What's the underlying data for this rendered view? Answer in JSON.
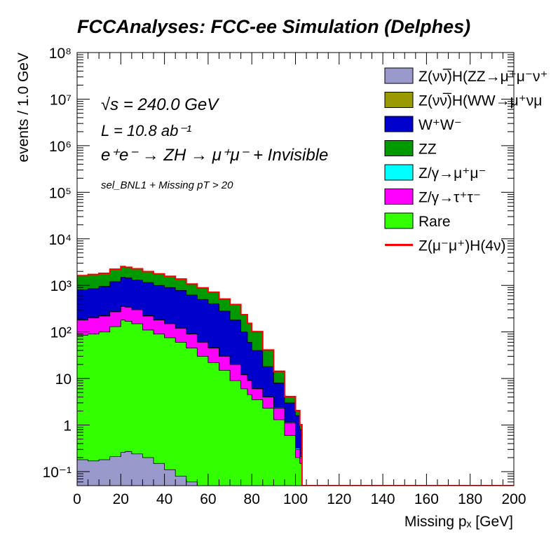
{
  "title": "FCCAnalyses: FCC-ee Simulation (Delphes)",
  "annotations": {
    "sqrt_s": "√s = 240.0 GeV",
    "lumi": "L = 10.8 ab⁻¹",
    "process": "e⁺e⁻ → ZH → μ⁺μ⁻ + Invisible",
    "selection": "sel_BNL1 + Missing pT > 20"
  },
  "colors": {
    "ZvvH_ZZ": "#9999cc",
    "ZvvH_WW": "#999900",
    "WW": "#0000cc",
    "ZZ": "#009900",
    "Zmumu": "#00ffff",
    "Ztautau": "#ff00ff",
    "Rare": "#33ff00",
    "signal": "#ff0000"
  },
  "chart_data": {
    "type": "area",
    "stacked": true,
    "x_scale": "linear",
    "y_scale": "log",
    "xlabel": "Missing pₓ [GeV]",
    "ylabel": "events / 1.0 GeV",
    "xlim": [
      0,
      200
    ],
    "ylim": [
      0.05,
      100000000
    ],
    "x_ticks": [
      0,
      20,
      40,
      60,
      80,
      100,
      120,
      140,
      160,
      180,
      200
    ],
    "y_ticks": [
      {
        "value": 0.1,
        "label": "10⁻¹"
      },
      {
        "value": 1,
        "label": "1"
      },
      {
        "value": 10,
        "label": "10"
      },
      {
        "value": 100,
        "label": "10²"
      },
      {
        "value": 1000,
        "label": "10³"
      },
      {
        "value": 10000,
        "label": "10⁴"
      },
      {
        "value": 100000,
        "label": "10⁵"
      },
      {
        "value": 1000000,
        "label": "10⁶"
      },
      {
        "value": 10000000,
        "label": "10⁷"
      },
      {
        "value": 100000000,
        "label": "10⁸"
      }
    ],
    "legend_position": "top-right",
    "legend": [
      {
        "key": "ZvvH_ZZ",
        "label": "Z(νν̅)H(ZZ→μ⁺μ⁻ν⁺",
        "style": "fill"
      },
      {
        "key": "ZvvH_WW",
        "label": "Z(νν̅)H(WW→μ⁺νμ",
        "style": "fill"
      },
      {
        "key": "WW",
        "label": "W⁺W⁻",
        "style": "fill"
      },
      {
        "key": "ZZ",
        "label": "ZZ",
        "style": "fill"
      },
      {
        "key": "Zmumu",
        "label": "Z/γ→μ⁺μ⁻",
        "style": "fill"
      },
      {
        "key": "Ztautau",
        "label": "Z/γ→τ⁺τ⁻",
        "style": "fill"
      },
      {
        "key": "Rare",
        "label": "Rare",
        "style": "fill"
      },
      {
        "key": "signal",
        "label": "Z(μ⁻μ⁺)H(4ν)",
        "style": "line"
      }
    ],
    "x": [
      0,
      5,
      10,
      15,
      20,
      22,
      25,
      30,
      35,
      40,
      45,
      50,
      55,
      60,
      65,
      70,
      75,
      78,
      80,
      85,
      90,
      95,
      100,
      102,
      103
    ],
    "boundaries": [
      {
        "name": "ZvvH_ZZ top",
        "values": [
          0.18,
          0.17,
          0.18,
          0.21,
          0.26,
          0.27,
          0.24,
          0.2,
          0.15,
          0.11,
          0.08,
          0.06,
          0.05,
          0.05,
          0.05,
          0.05,
          0.05,
          0.05,
          0.05,
          0.05,
          0.05,
          0.05,
          0.05,
          0.05,
          0.05
        ]
      },
      {
        "name": "Rare top",
        "values": [
          85,
          90,
          100,
          130,
          180,
          170,
          150,
          110,
          90,
          75,
          60,
          45,
          30,
          22,
          15,
          9,
          6,
          4.5,
          3.5,
          2.3,
          1.3,
          0.6,
          0.2,
          0.15,
          0.05
        ]
      },
      {
        "name": "Ztautau top",
        "values": [
          180,
          200,
          220,
          270,
          350,
          340,
          300,
          220,
          180,
          150,
          120,
          90,
          60,
          45,
          30,
          20,
          12,
          9,
          6,
          4,
          2.3,
          1.1,
          0.3,
          0.2,
          0.05
        ]
      },
      {
        "name": "Zmumu top",
        "values": [
          185,
          205,
          225,
          275,
          355,
          345,
          305,
          225,
          185,
          152,
          122,
          92,
          62,
          46,
          31,
          20.5,
          12.3,
          9.2,
          6.1,
          4.1,
          2.4,
          1.15,
          0.32,
          0.21,
          0.05
        ]
      },
      {
        "name": "WW top",
        "values": [
          800,
          850,
          950,
          1200,
          1500,
          1450,
          1300,
          1150,
          1000,
          900,
          780,
          620,
          500,
          400,
          280,
          180,
          100,
          60,
          40,
          18,
          8,
          3,
          1.6,
          0.8,
          0.05
        ]
      },
      {
        "name": "ZZ top",
        "values": [
          1600,
          1700,
          1800,
          2200,
          2500,
          2400,
          2250,
          1950,
          1750,
          1550,
          1350,
          1050,
          870,
          700,
          500,
          380,
          230,
          150,
          100,
          40,
          14,
          4,
          2,
          1,
          0.05
        ]
      },
      {
        "name": "signal (total)",
        "values": [
          1620,
          1720,
          1820,
          2230,
          2550,
          2450,
          2280,
          1980,
          1770,
          1570,
          1370,
          1070,
          885,
          712,
          510,
          388,
          235,
          153,
          102,
          41,
          14.3,
          4.1,
          2.05,
          1.02,
          0.05
        ]
      }
    ]
  }
}
